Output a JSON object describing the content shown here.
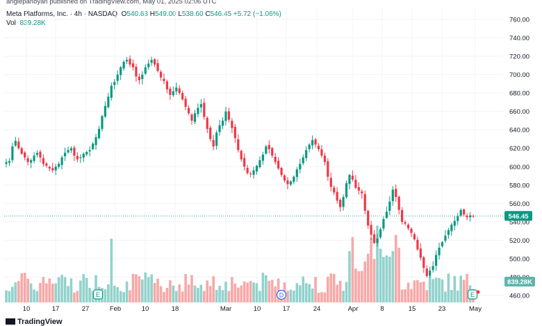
{
  "header": {
    "publish_line": "anglepanoyan published on TradingView.com, May 01, 2025 02:06 UTC",
    "symbol": "Meta Platforms, Inc. · 4h · NASDAQ",
    "o_label": "O",
    "o_value": "540.63",
    "h_label": "H",
    "h_value": "549.00",
    "l_label": "L",
    "l_value": "538.60",
    "c_label": "C",
    "c_value": "546.45",
    "change": "+5.72 (+1.06%)",
    "vol_label": "Vol",
    "vol_value": "839.28K"
  },
  "footer": {
    "brand": "TradingView"
  },
  "colors": {
    "up": "#089981",
    "down": "#f23645",
    "up_volume": "#92d2cc",
    "down_volume": "#f7a9a7"
  },
  "chart_data": {
    "type": "candlestick",
    "interval": "4h",
    "y_ticks": [
      "760.00",
      "740.00",
      "720.00",
      "700.00",
      "680.00",
      "660.00",
      "640.00",
      "620.00",
      "600.00",
      "580.00",
      "560.00",
      "540.00",
      "520.00",
      "500.00",
      "480.00",
      "460.00"
    ],
    "ylim": [
      452,
      768
    ],
    "x_ticks": [
      "10",
      "17",
      "27",
      "Feb",
      "10",
      "18",
      "Mar",
      "10",
      "17",
      "24",
      "Apr",
      "8",
      "15",
      "23",
      "May"
    ],
    "last_price_label": "546.45",
    "last_volume_label": "839.28K",
    "event_markers": [
      {
        "letter": "E",
        "tick": "27"
      },
      {
        "letter": "D",
        "tick": "17"
      },
      {
        "letter": "E",
        "tick": "May"
      }
    ],
    "closes": [
      605,
      606,
      622,
      628,
      620,
      614,
      610,
      605,
      607,
      612,
      615,
      610,
      603,
      601,
      598,
      596,
      600,
      603,
      610,
      615,
      618,
      620,
      612,
      608,
      610,
      614,
      616,
      618,
      625,
      632,
      641,
      655,
      666,
      676,
      688,
      692,
      700,
      708,
      714,
      716,
      711,
      708,
      698,
      694,
      700,
      708,
      712,
      716,
      711,
      704,
      697,
      693,
      684,
      678,
      682,
      686,
      680,
      673,
      665,
      658,
      650,
      658,
      664,
      668,
      654,
      641,
      630,
      622,
      637,
      645,
      650,
      660,
      651,
      642,
      631,
      618,
      608,
      600,
      593,
      592,
      596,
      601,
      607,
      613,
      622,
      619,
      612,
      605,
      598,
      591,
      585,
      581,
      584,
      589,
      597,
      603,
      610,
      618,
      624,
      629,
      624,
      619,
      612,
      605,
      589,
      578,
      572,
      563,
      556,
      567,
      582,
      591,
      586,
      577,
      574,
      571,
      552,
      536,
      526,
      517,
      522,
      532,
      543,
      551,
      562,
      575,
      567,
      553,
      540,
      538,
      533,
      528,
      521,
      510,
      501,
      490,
      481,
      487,
      492,
      504,
      512,
      518,
      525,
      531,
      537,
      541,
      546,
      553,
      548,
      545,
      547,
      546
    ]
  }
}
